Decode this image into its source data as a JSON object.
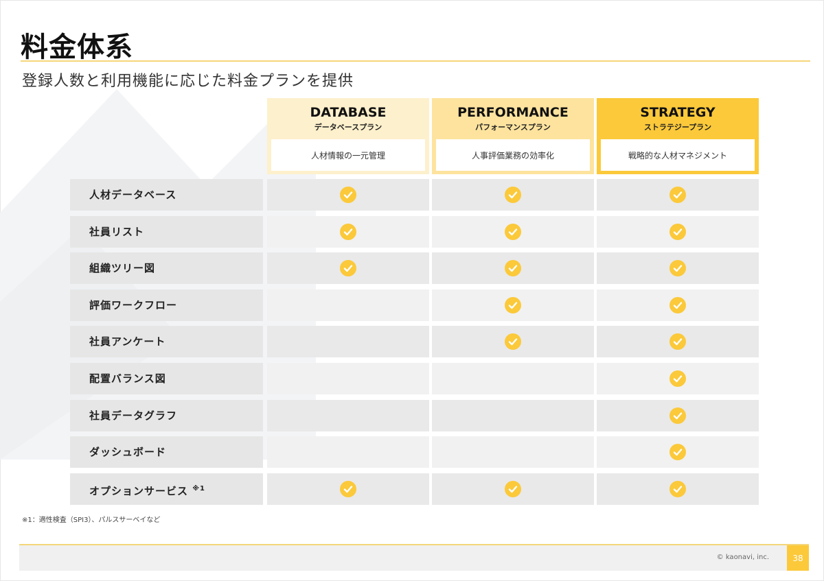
{
  "title": "料金体系",
  "subtitle": "登録人数と利用機能に応じた料金プランを提供",
  "plans": [
    {
      "name": "DATABASE",
      "kana": "データベースプラン",
      "desc": "人材情報の一元管理",
      "color": "#fdf0cc"
    },
    {
      "name": "PERFORMANCE",
      "kana": "パフォーマンスプラン",
      "desc": "人事評価業務の効率化",
      "color": "#fde39e"
    },
    {
      "name": "STRATEGY",
      "kana": "ストラテジープラン",
      "desc": "戦略的な人材マネジメント",
      "color": "#fbc93a"
    }
  ],
  "features": [
    {
      "label": "人材データベース",
      "checks": [
        true,
        true,
        true
      ]
    },
    {
      "label": "社員リスト",
      "checks": [
        true,
        true,
        true
      ]
    },
    {
      "label": "組織ツリー図",
      "checks": [
        true,
        true,
        true
      ]
    },
    {
      "label": "評価ワークフロー",
      "checks": [
        false,
        true,
        true
      ]
    },
    {
      "label": "社員アンケート",
      "checks": [
        false,
        true,
        true
      ]
    },
    {
      "label": "配置バランス図",
      "checks": [
        false,
        false,
        true
      ]
    },
    {
      "label": "社員データグラフ",
      "checks": [
        false,
        false,
        true
      ]
    },
    {
      "label": "ダッシュボード",
      "checks": [
        false,
        false,
        true
      ]
    },
    {
      "label": "オプションサービス",
      "note_mark": "※1",
      "checks": [
        true,
        true,
        true
      ]
    }
  ],
  "footnote": "※1：適性検査（SPI3）、パルスサーベイなど",
  "copyright": "© kaonavi, inc.",
  "page_number": "38",
  "icons": {
    "check": "check-circle-icon"
  },
  "colors": {
    "accent": "#fbc93a",
    "rule": "#f5d67a"
  }
}
